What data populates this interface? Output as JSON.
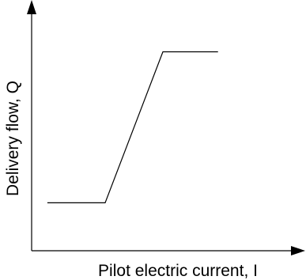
{
  "chart_data": {
    "type": "line",
    "xlabel": "Pilot electric current, I",
    "ylabel": "Delivery flow, Q",
    "x": [
      0.06,
      0.28,
      0.5,
      0.71
    ],
    "y": [
      0.2,
      0.2,
      0.83,
      0.83
    ],
    "xlim": [
      0,
      1
    ],
    "ylim": [
      0,
      1
    ],
    "ticks": false,
    "grid": false
  }
}
